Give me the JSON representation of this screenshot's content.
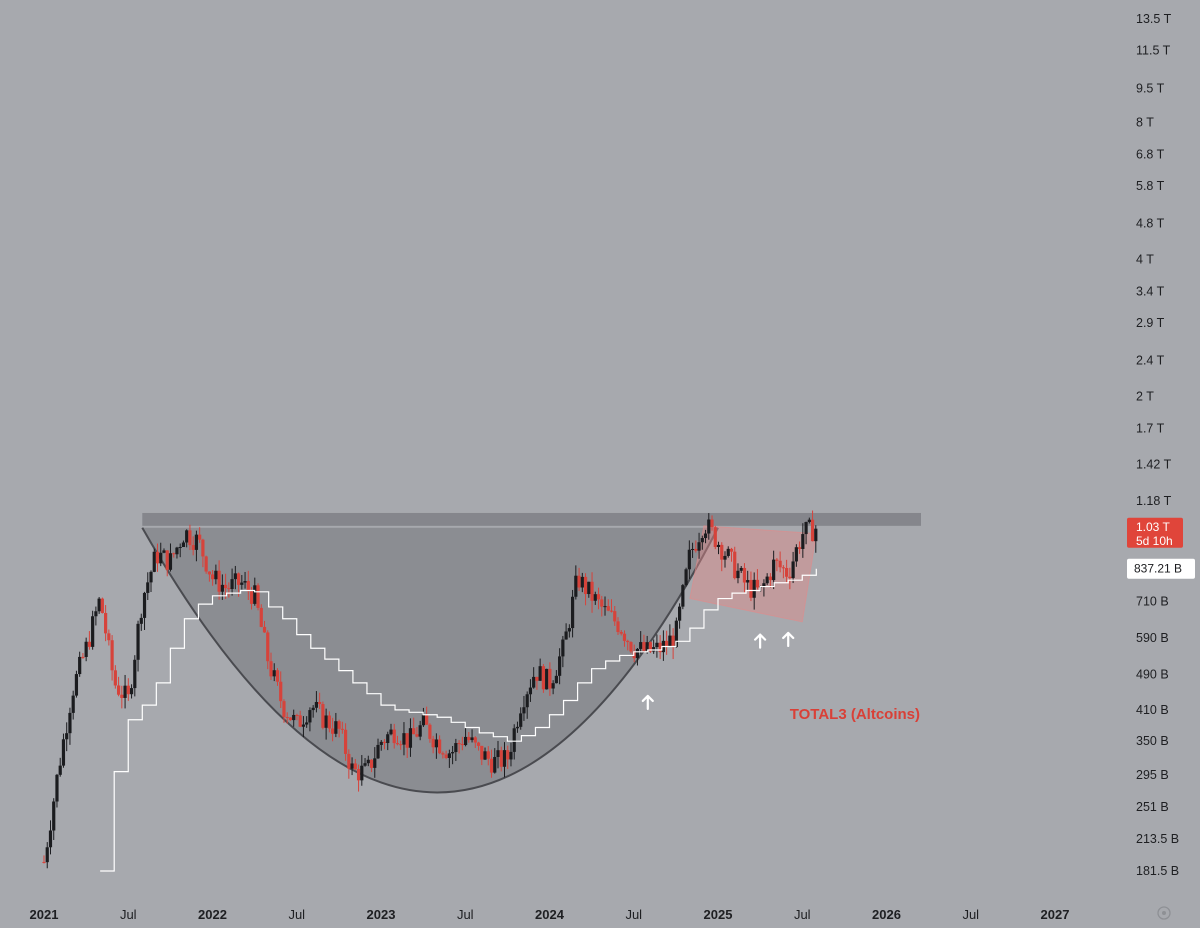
{
  "chart_data": {
    "type": "candlestick",
    "scale": "log",
    "symbol_label": "TOTAL3 (Altcoins)",
    "y_ticks": [
      "13.5 T",
      "11.5 T",
      "9.5 T",
      "8 T",
      "6.8 T",
      "5.8 T",
      "4.8 T",
      "4 T",
      "3.4 T",
      "2.9 T",
      "2.4 T",
      "2 T",
      "1.7 T",
      "1.42 T",
      "1.18 T",
      "710 B",
      "590 B",
      "490 B",
      "410 B",
      "350 B",
      "295 B",
      "251 B",
      "213.5 B",
      "181.5 B"
    ],
    "y_tick_values": [
      13500,
      11500,
      9500,
      8000,
      6800,
      5800,
      4800,
      4000,
      3400,
      2900,
      2400,
      2000,
      1700,
      1420,
      1180,
      710,
      590,
      490,
      410,
      350,
      295,
      251,
      213.5,
      181.5
    ],
    "x_ticks": [
      {
        "label": "2021",
        "date": "2021-01",
        "bold": true
      },
      {
        "label": "Jul",
        "date": "2021-07",
        "bold": false
      },
      {
        "label": "2022",
        "date": "2022-01",
        "bold": true
      },
      {
        "label": "Jul",
        "date": "2022-07",
        "bold": false
      },
      {
        "label": "2023",
        "date": "2023-01",
        "bold": true
      },
      {
        "label": "Jul",
        "date": "2023-07",
        "bold": false
      },
      {
        "label": "2024",
        "date": "2024-01",
        "bold": true
      },
      {
        "label": "Jul",
        "date": "2024-07",
        "bold": false
      },
      {
        "label": "2025",
        "date": "2025-01",
        "bold": true
      },
      {
        "label": "Jul",
        "date": "2025-07",
        "bold": false
      },
      {
        "label": "2026",
        "date": "2026-01",
        "bold": true
      },
      {
        "label": "Jul",
        "date": "2026-07",
        "bold": false
      },
      {
        "label": "2027",
        "date": "2027-01",
        "bold": true
      }
    ],
    "current_price": {
      "value_label": "1.03 T",
      "countdown": "5d 10h",
      "value": 1030
    },
    "ma_price": {
      "value_label": "837.21 B",
      "value": 837.21
    },
    "resistance_zone": {
      "low": 1040,
      "high": 1110
    },
    "price_path": [
      [
        "2021-01",
        190
      ],
      [
        "2021-02",
        300
      ],
      [
        "2021-03",
        450
      ],
      [
        "2021-04",
        560
      ],
      [
        "2021-05",
        720
      ],
      [
        "2021-06",
        470
      ],
      [
        "2021-07",
        430
      ],
      [
        "2021-08",
        720
      ],
      [
        "2021-09",
        900
      ],
      [
        "2021-10",
        870
      ],
      [
        "2021-11",
        1010
      ],
      [
        "2021-12",
        960
      ],
      [
        "2022-01",
        800
      ],
      [
        "2022-02",
        760
      ],
      [
        "2022-03",
        780
      ],
      [
        "2022-04",
        730
      ],
      [
        "2022-05",
        520
      ],
      [
        "2022-06",
        420
      ],
      [
        "2022-07",
        380
      ],
      [
        "2022-08",
        420
      ],
      [
        "2022-09",
        390
      ],
      [
        "2022-10",
        370
      ],
      [
        "2022-11",
        300
      ],
      [
        "2022-12",
        300
      ],
      [
        "2023-01",
        350
      ],
      [
        "2023-02",
        370
      ],
      [
        "2023-03",
        350
      ],
      [
        "2023-04",
        380
      ],
      [
        "2023-05",
        350
      ],
      [
        "2023-06",
        330
      ],
      [
        "2023-07",
        360
      ],
      [
        "2023-08",
        330
      ],
      [
        "2023-09",
        315
      ],
      [
        "2023-10",
        320
      ],
      [
        "2023-11",
        430
      ],
      [
        "2023-12",
        500
      ],
      [
        "2024-01",
        470
      ],
      [
        "2024-02",
        560
      ],
      [
        "2024-03",
        800
      ],
      [
        "2024-04",
        730
      ],
      [
        "2024-05",
        670
      ],
      [
        "2024-06",
        630
      ],
      [
        "2024-07",
        560
      ],
      [
        "2024-08",
        550
      ],
      [
        "2024-09",
        560
      ],
      [
        "2024-10",
        600
      ],
      [
        "2024-11",
        900
      ],
      [
        "2024-12",
        1060
      ],
      [
        "2025-01",
        960
      ],
      [
        "2025-02",
        860
      ],
      [
        "2025-03",
        770
      ],
      [
        "2025-04",
        740
      ],
      [
        "2025-05",
        860
      ],
      [
        "2025-06",
        820
      ],
      [
        "2025-07",
        1000
      ],
      [
        "2025-08",
        1030
      ]
    ],
    "ma_path": [
      [
        "2021-05",
        181.5
      ],
      [
        "2021-06",
        300
      ],
      [
        "2021-07",
        390
      ],
      [
        "2021-08",
        420
      ],
      [
        "2021-09",
        470
      ],
      [
        "2021-10",
        560
      ],
      [
        "2021-11",
        650
      ],
      [
        "2021-12",
        700
      ],
      [
        "2022-01",
        730
      ],
      [
        "2022-02",
        740
      ],
      [
        "2022-03",
        750
      ],
      [
        "2022-04",
        745
      ],
      [
        "2022-05",
        690
      ],
      [
        "2022-06",
        650
      ],
      [
        "2022-07",
        600
      ],
      [
        "2022-08",
        560
      ],
      [
        "2022-09",
        530
      ],
      [
        "2022-10",
        500
      ],
      [
        "2022-11",
        470
      ],
      [
        "2022-12",
        445
      ],
      [
        "2023-01",
        420
      ],
      [
        "2023-02",
        410
      ],
      [
        "2023-03",
        405
      ],
      [
        "2023-04",
        400
      ],
      [
        "2023-05",
        395
      ],
      [
        "2023-06",
        385
      ],
      [
        "2023-07",
        375
      ],
      [
        "2023-08",
        365
      ],
      [
        "2023-09",
        358
      ],
      [
        "2023-10",
        350
      ],
      [
        "2023-11",
        360
      ],
      [
        "2023-12",
        375
      ],
      [
        "2024-01",
        400
      ],
      [
        "2024-02",
        430
      ],
      [
        "2024-03",
        470
      ],
      [
        "2024-04",
        505
      ],
      [
        "2024-05",
        525
      ],
      [
        "2024-06",
        540
      ],
      [
        "2024-07",
        550
      ],
      [
        "2024-08",
        555
      ],
      [
        "2024-09",
        565
      ],
      [
        "2024-10",
        580
      ],
      [
        "2024-11",
        620
      ],
      [
        "2024-12",
        680
      ],
      [
        "2025-01",
        720
      ],
      [
        "2025-02",
        740
      ],
      [
        "2025-03",
        750
      ],
      [
        "2025-04",
        765
      ],
      [
        "2025-05",
        780
      ],
      [
        "2025-06",
        790
      ],
      [
        "2025-07",
        810
      ],
      [
        "2025-08",
        837.21
      ]
    ],
    "cup_curve": [
      [
        "2021-08",
        1030
      ],
      [
        "2023-05",
        270
      ],
      [
        "2025-01",
        1030
      ]
    ],
    "channel": [
      [
        "2024-12",
        1040
      ],
      [
        "2025-08",
        1000
      ],
      [
        "2025-07",
        640
      ],
      [
        "2024-11",
        720
      ]
    ],
    "arrows": [
      {
        "date": "2024-08",
        "value": 440
      },
      {
        "date": "2025-04",
        "value": 600
      },
      {
        "date": "2025-06",
        "value": 605
      }
    ],
    "colors": {
      "background": "#a7a9ae",
      "up": "#1b1c1f",
      "down": "#d6433b",
      "ma": "#ffffff",
      "cup_fill": "#75767b",
      "resistance": "#7a7b80",
      "channel": "#e28a8a",
      "label": "#d94037",
      "price_tag_bg": "#e0453a"
    }
  }
}
